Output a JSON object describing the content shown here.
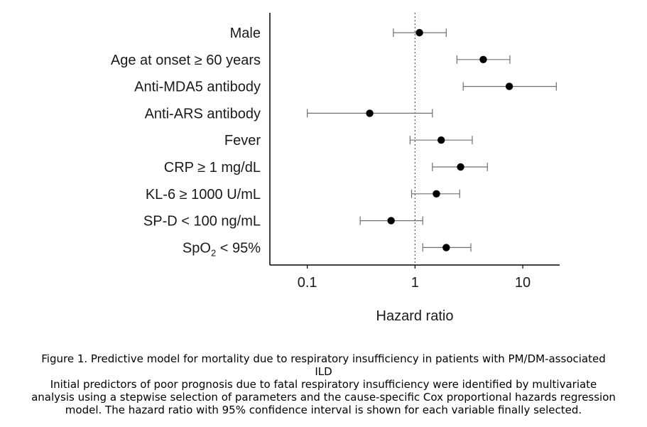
{
  "chart_data": {
    "type": "forest",
    "xlabel": "Hazard ratio",
    "xscale": "log",
    "xlim": [
      0.045,
      22
    ],
    "xticks": [
      0.1,
      1,
      10
    ],
    "xtick_labels": [
      "0.1",
      "1",
      "10"
    ],
    "reference_line": 1,
    "grid": false,
    "categories": [
      "Male",
      "Age at onset ≥  60 years",
      "Anti-MDA5 antibody",
      "Anti-ARS antibody",
      "Fever",
      "CRP ≥ 1 mg/dL",
      "KL-6 ≥ 1000 U/mL",
      "SP-D < 100 ng/mL",
      "SpO₂ < 95%"
    ],
    "estimates": [
      1.1,
      4.3,
      7.5,
      0.38,
      1.75,
      2.65,
      1.58,
      0.6,
      1.95
    ],
    "ci_lower": [
      0.63,
      2.45,
      2.8,
      0.1,
      0.9,
      1.45,
      0.93,
      0.31,
      1.18
    ],
    "ci_upper": [
      1.95,
      7.6,
      20.5,
      1.45,
      3.4,
      4.7,
      2.6,
      1.18,
      3.3
    ],
    "colors": {
      "marker": "#000000",
      "whisker": "#707070",
      "axis": "#000000",
      "reference": "#555555"
    }
  },
  "caption": {
    "title_line": "Figure 1. Predictive model for mortality due to respiratory insufficiency in patients with PM/DM-associated",
    "title_cont": "ILD",
    "body_lines": [
      "Initial predictors of poor prognosis due to fatal respiratory insufficiency were identified by multivariate",
      "analysis using a stepwise selection of parameters and the cause-specific Cox proportional hazards regression",
      "model. The hazard ratio with 95% confidence interval is shown for each variable finally selected."
    ]
  }
}
